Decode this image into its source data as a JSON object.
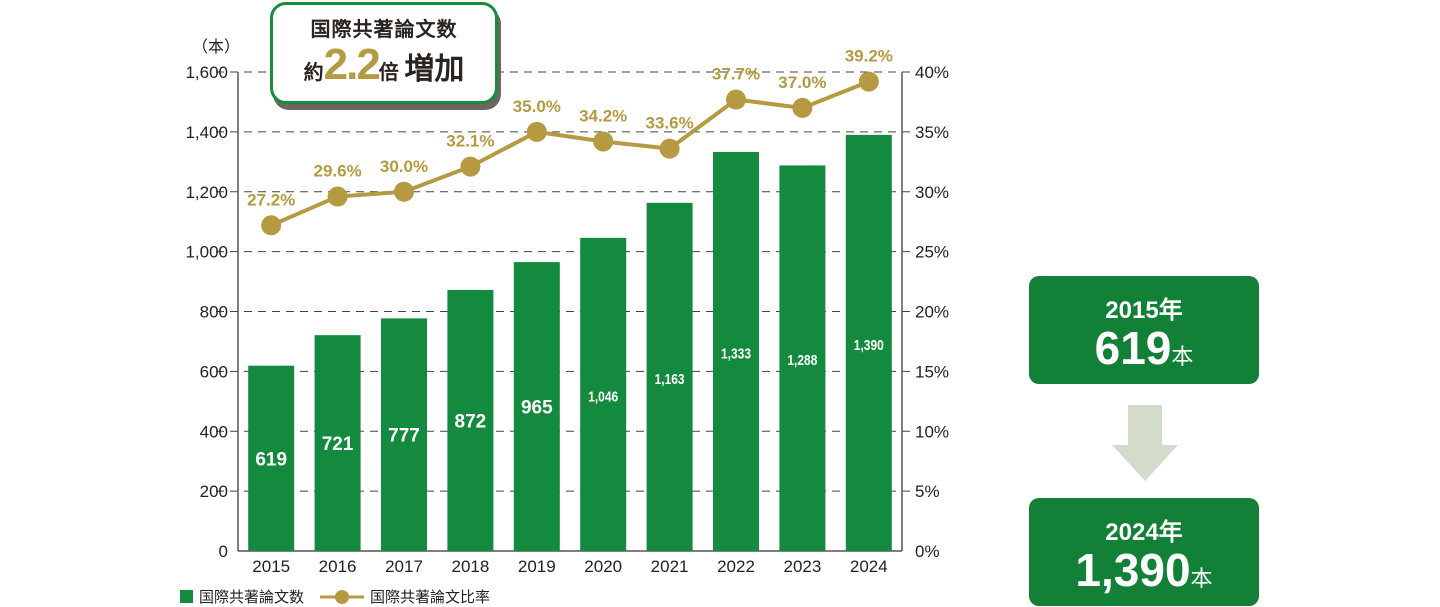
{
  "chart_data": {
    "type": "bar+line",
    "categories": [
      "2015",
      "2016",
      "2017",
      "2018",
      "2019",
      "2020",
      "2021",
      "2022",
      "2023",
      "2024"
    ],
    "series": [
      {
        "name": "国際共著論文数",
        "type": "bar",
        "axis": "left",
        "values": [
          619,
          721,
          777,
          872,
          965,
          1046,
          1163,
          1333,
          1288,
          1390
        ],
        "labels": [
          "619",
          "721",
          "777",
          "872",
          "965",
          "1,046",
          "1,163",
          "1,333",
          "1,288",
          "1,390"
        ]
      },
      {
        "name": "国際共著論文比率",
        "type": "line",
        "axis": "right",
        "values": [
          27.2,
          29.6,
          30.0,
          32.1,
          35.0,
          34.2,
          33.6,
          37.7,
          37.0,
          39.2
        ],
        "labels": [
          "27.2%",
          "29.6%",
          "30.0%",
          "32.1%",
          "35.0%",
          "34.2%",
          "33.6%",
          "37.7%",
          "37.0%",
          "39.2%"
        ]
      }
    ],
    "left_axis": {
      "unit_label": "（本）",
      "ylim": [
        0,
        1600
      ],
      "ticks": [
        "0",
        "200",
        "400",
        "600",
        "800",
        "1,000",
        "1,200",
        "1,400",
        "1,600"
      ]
    },
    "right_axis": {
      "ylim": [
        0,
        40
      ],
      "ticks": [
        "0%",
        "5%",
        "10%",
        "15%",
        "20%",
        "25%",
        "30%",
        "35%",
        "40%"
      ]
    },
    "grid": "dashed horizontal",
    "legend": "bottom-left",
    "colors": {
      "bar": "#138a3e",
      "line": "#b59a42"
    }
  },
  "callout": {
    "line1": "国際共著論文数",
    "prefix": "約",
    "value": "2.2",
    "suffix1": "倍",
    "suffix2": "増加"
  },
  "summary": {
    "from": {
      "year": "2015年",
      "value": "619",
      "unit": "本"
    },
    "to": {
      "year": "2024年",
      "value": "1,390",
      "unit": "本"
    }
  }
}
